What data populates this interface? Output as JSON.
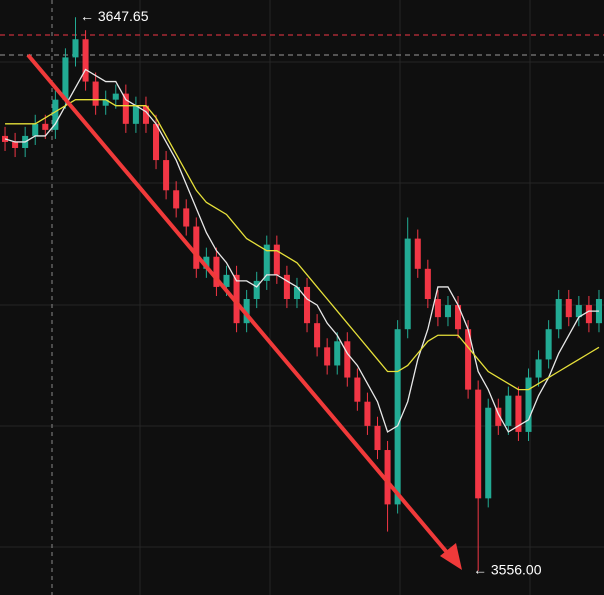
{
  "chart_data": {
    "type": "candlestick",
    "up_color": "#22ab94",
    "down_color": "#f23645",
    "ylim": [
      3552,
      3650.5
    ],
    "candles": [
      [
        3628,
        3629.5,
        3625.5,
        3627
      ],
      [
        3627,
        3628.5,
        3624.5,
        3626
      ],
      [
        3626,
        3629.5,
        3624.5,
        3628
      ],
      [
        3628,
        3631.5,
        3626.5,
        3630
      ],
      [
        3630,
        3631.5,
        3627.5,
        3629
      ],
      [
        3629,
        3635.5,
        3627.5,
        3634
      ],
      [
        3634,
        3642.5,
        3632.5,
        3641
      ],
      [
        3641,
        3647.65,
        3639.5,
        3644
      ],
      [
        3644,
        3645.5,
        3635.5,
        3637
      ],
      [
        3637,
        3638.5,
        3631.5,
        3633
      ],
      [
        3633,
        3635.5,
        3631.5,
        3634
      ],
      [
        3634,
        3636.5,
        3632.5,
        3635
      ],
      [
        3635,
        3636.5,
        3628.5,
        3630
      ],
      [
        3630,
        3634.5,
        3628.5,
        3633
      ],
      [
        3633,
        3634.5,
        3628.5,
        3630
      ],
      [
        3630,
        3631.5,
        3622.5,
        3624
      ],
      [
        3624,
        3625.5,
        3617.5,
        3619
      ],
      [
        3619,
        3620.5,
        3614.5,
        3616
      ],
      [
        3616,
        3617.5,
        3611.5,
        3613
      ],
      [
        3613,
        3614.5,
        3604.5,
        3606
      ],
      [
        3606,
        3609.5,
        3604.5,
        3608
      ],
      [
        3608,
        3609.5,
        3601.5,
        3603
      ],
      [
        3603,
        3606.5,
        3601.5,
        3605
      ],
      [
        3605,
        3606.5,
        3595.5,
        3597
      ],
      [
        3597,
        3602.5,
        3595.5,
        3601
      ],
      [
        3601,
        3605.5,
        3599.5,
        3604
      ],
      [
        3604,
        3611.5,
        3602.5,
        3610
      ],
      [
        3610,
        3611.5,
        3603.5,
        3605
      ],
      [
        3605,
        3606.5,
        3599.5,
        3601
      ],
      [
        3601,
        3604.5,
        3599.5,
        3603
      ],
      [
        3603,
        3604.5,
        3595.5,
        3597
      ],
      [
        3597,
        3598.5,
        3591.5,
        3593
      ],
      [
        3593,
        3594.5,
        3588.5,
        3590
      ],
      [
        3590,
        3595.5,
        3588.5,
        3594
      ],
      [
        3594,
        3595.5,
        3586.5,
        3588
      ],
      [
        3588,
        3589.5,
        3582.5,
        3584
      ],
      [
        3584,
        3585.5,
        3578.5,
        3580
      ],
      [
        3580,
        3581.5,
        3574.5,
        3576
      ],
      [
        3576,
        3577.5,
        3562.5,
        3567
      ],
      [
        3567,
        3597.5,
        3565.5,
        3596
      ],
      [
        3596,
        3614.5,
        3594.5,
        3611
      ],
      [
        3611,
        3612.5,
        3604.5,
        3606
      ],
      [
        3606,
        3607.5,
        3599.5,
        3601
      ],
      [
        3601,
        3602.5,
        3596.5,
        3598
      ],
      [
        3598,
        3601.5,
        3596.5,
        3600
      ],
      [
        3600,
        3601.5,
        3594.5,
        3596
      ],
      [
        3596,
        3597.5,
        3584.5,
        3586
      ],
      [
        3586,
        3587.5,
        3556,
        3568
      ],
      [
        3568,
        3584.5,
        3566.5,
        3583
      ],
      [
        3583,
        3584.5,
        3578.5,
        3580
      ],
      [
        3580,
        3586.5,
        3578.5,
        3585
      ],
      [
        3585,
        3586.5,
        3577.5,
        3579
      ],
      [
        3579,
        3589.5,
        3577.5,
        3588
      ],
      [
        3588,
        3592.5,
        3586.5,
        3591
      ],
      [
        3591,
        3597.5,
        3589.5,
        3596
      ],
      [
        3596,
        3602.5,
        3594.5,
        3601
      ],
      [
        3601,
        3602.5,
        3596.5,
        3598
      ],
      [
        3598,
        3601.5,
        3596.5,
        3600
      ],
      [
        3600,
        3601.5,
        3595.5,
        3597
      ],
      [
        3597,
        3602.5,
        3595.5,
        3601
      ]
    ],
    "series": [
      {
        "color": "#e8e8e8",
        "values": [
          3627.5,
          3627,
          3627,
          3628,
          3628,
          3630,
          3633,
          3636,
          3639,
          3638,
          3637,
          3637,
          3634,
          3633,
          3632,
          3630,
          3627,
          3624,
          3620,
          3616,
          3612,
          3609,
          3607,
          3604,
          3604,
          3603,
          3605,
          3605,
          3604,
          3603,
          3601,
          3600,
          3597,
          3595,
          3592,
          3590,
          3587,
          3584,
          3579,
          3580,
          3584,
          3591,
          3596,
          3603,
          3603,
          3600,
          3596,
          3589,
          3586,
          3582,
          3579,
          3580,
          3581,
          3585,
          3588,
          3592,
          3595,
          3598,
          3599,
          3599
        ]
      },
      {
        "color": "#e6e03a",
        "values": [
          3630,
          3630,
          3630,
          3630,
          3631,
          3632,
          3633,
          3634,
          3634,
          3634,
          3634,
          3633,
          3633,
          3633,
          3633,
          3631,
          3628,
          3625,
          3622,
          3619,
          3617,
          3616,
          3615,
          3613,
          3611,
          3610,
          3609,
          3609,
          3608,
          3607,
          3605,
          3603,
          3601,
          3599,
          3597,
          3595,
          3593,
          3591,
          3589,
          3589,
          3590,
          3592,
          3594,
          3595,
          3595,
          3595,
          3593,
          3591,
          3589,
          3588,
          3587,
          3586,
          3586,
          3587,
          3588,
          3589,
          3590,
          3591,
          3592,
          3593
        ]
      }
    ],
    "price_lines": [
      {
        "value": 3644.7,
        "color": "#f23645"
      },
      {
        "value": 3641.4,
        "color": "#9a9a9a"
      }
    ],
    "annotations": [
      {
        "value": 3647.65,
        "label": "← 3647.65"
      },
      {
        "value": 3556,
        "label": "← 3556.00"
      }
    ]
  }
}
